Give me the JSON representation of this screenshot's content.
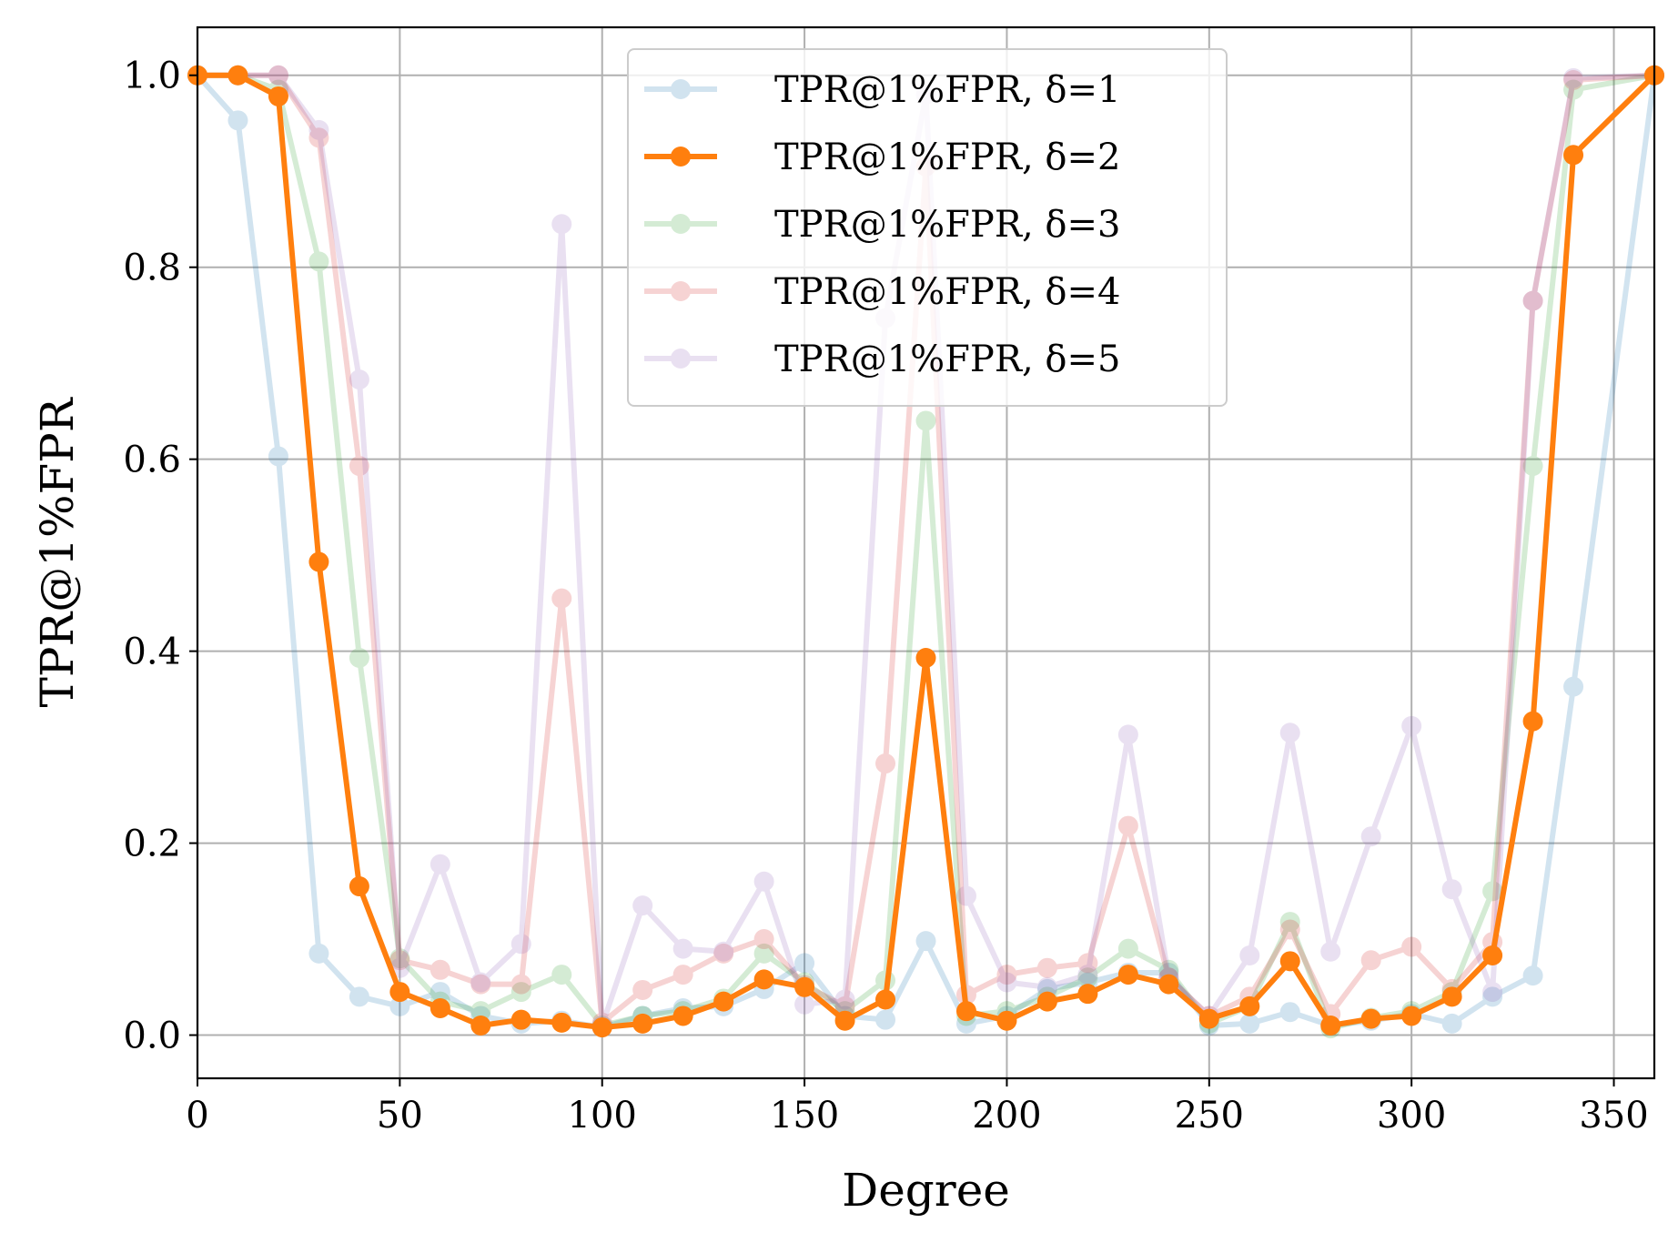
{
  "chart_data": {
    "type": "line",
    "title": "",
    "xlabel": "Degree",
    "ylabel": "TPR@1%FPR",
    "xlim": [
      0,
      360
    ],
    "ylim": [
      -0.045,
      1.05
    ],
    "xticks": [
      0,
      50,
      100,
      150,
      200,
      250,
      300,
      350
    ],
    "xtick_labels": [
      "0",
      "50",
      "100",
      "150",
      "200",
      "250",
      "300",
      "350"
    ],
    "yticks": [
      0.0,
      0.2,
      0.4,
      0.6,
      0.8,
      1.0
    ],
    "ytick_labels": [
      "0.0",
      "0.2",
      "0.4",
      "0.6",
      "0.8",
      "1.0"
    ],
    "grid": true,
    "legend_position": "top-center",
    "x": [
      0,
      10,
      20,
      30,
      40,
      50,
      60,
      70,
      80,
      90,
      100,
      110,
      120,
      130,
      140,
      150,
      160,
      170,
      180,
      190,
      200,
      210,
      220,
      230,
      240,
      250,
      260,
      270,
      280,
      290,
      300,
      310,
      320,
      330,
      340,
      360
    ],
    "series": [
      {
        "name": "TPR@1%FPR, δ=1",
        "color": "#1f77b4",
        "opacity": 0.2,
        "values": [
          1.0,
          0.953,
          0.603,
          0.085,
          0.04,
          0.03,
          0.045,
          0.02,
          0.012,
          0.015,
          0.008,
          0.02,
          0.028,
          0.03,
          0.048,
          0.075,
          0.02,
          0.016,
          0.098,
          0.012,
          0.02,
          0.048,
          0.055,
          0.065,
          0.065,
          0.01,
          0.012,
          0.024,
          0.01,
          0.015,
          0.022,
          0.012,
          0.04,
          0.062,
          0.363,
          1.0
        ]
      },
      {
        "name": "TPR@1%FPR, δ=2",
        "color": "#ff7f0e",
        "opacity": 1.0,
        "values": [
          1.0,
          1.0,
          0.978,
          0.493,
          0.155,
          0.045,
          0.028,
          0.01,
          0.016,
          0.013,
          0.008,
          0.012,
          0.02,
          0.035,
          0.058,
          0.05,
          0.015,
          0.037,
          0.393,
          0.025,
          0.015,
          0.035,
          0.043,
          0.063,
          0.053,
          0.017,
          0.03,
          0.077,
          0.01,
          0.017,
          0.02,
          0.04,
          0.083,
          0.327,
          0.917,
          1.0
        ]
      },
      {
        "name": "TPR@1%FPR, δ=3",
        "color": "#2ca02c",
        "opacity": 0.2,
        "values": [
          1.0,
          1.0,
          0.985,
          0.806,
          0.393,
          0.08,
          0.035,
          0.025,
          0.045,
          0.063,
          0.01,
          0.02,
          0.025,
          0.038,
          0.085,
          0.055,
          0.025,
          0.057,
          0.64,
          0.02,
          0.025,
          0.04,
          0.06,
          0.09,
          0.068,
          0.012,
          0.03,
          0.118,
          0.007,
          0.018,
          0.025,
          0.045,
          0.15,
          0.593,
          0.985,
          1.0
        ]
      },
      {
        "name": "TPR@1%FPR, δ=4",
        "color": "#d62728",
        "opacity": 0.2,
        "values": [
          1.0,
          1.0,
          1.0,
          0.935,
          0.593,
          0.078,
          0.068,
          0.053,
          0.053,
          0.455,
          0.013,
          0.047,
          0.063,
          0.085,
          0.1,
          0.052,
          0.03,
          0.283,
          0.905,
          0.042,
          0.063,
          0.07,
          0.075,
          0.218,
          0.06,
          0.02,
          0.04,
          0.11,
          0.022,
          0.078,
          0.092,
          0.048,
          0.097,
          0.765,
          0.995,
          1.0
        ]
      },
      {
        "name": "TPR@1%FPR, δ=5",
        "color": "#9467bd",
        "opacity": 0.2,
        "values": [
          1.0,
          1.0,
          1.0,
          0.943,
          0.683,
          0.07,
          0.178,
          0.055,
          0.095,
          0.845,
          0.01,
          0.135,
          0.09,
          0.087,
          0.16,
          0.032,
          0.037,
          0.747,
          0.98,
          0.145,
          0.055,
          0.05,
          0.063,
          0.313,
          0.06,
          0.02,
          0.083,
          0.315,
          0.087,
          0.207,
          0.322,
          0.152,
          0.045,
          0.765,
          0.997,
          1.0
        ]
      }
    ]
  }
}
